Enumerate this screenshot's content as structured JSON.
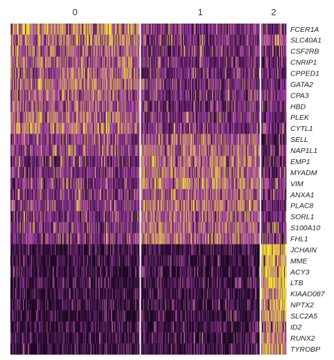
{
  "chart_data": {
    "type": "heatmap",
    "title": "",
    "xlabel": "",
    "ylabel": "",
    "clusters": [
      {
        "label": "0",
        "cells": 185
      },
      {
        "label": "1",
        "cells": 170
      },
      {
        "label": "2",
        "cells": 36
      }
    ],
    "genes": [
      "FCER1A",
      "SLC40A1",
      "CSF2RB",
      "CNRIP1",
      "CPPED1",
      "GATA2",
      "CPA3",
      "HBD",
      "PLEK",
      "CYTL1",
      "SELL",
      "NAP1L1",
      "EMP1",
      "MYADM",
      "VIM",
      "ANXA1",
      "PLAC8",
      "SORL1",
      "S100A10",
      "FHL1",
      "JCHAIN",
      "MME",
      "ACY3",
      "LTB",
      "KIAAO087",
      "NPTX2",
      "SLC2A5",
      "ID2",
      "RUNX2",
      "TYROBP"
    ],
    "mean_expression_by_cluster": {
      "columns": [
        "0",
        "1",
        "2"
      ],
      "rows": [
        [
          0.7,
          0.35,
          0.3
        ],
        [
          0.65,
          0.35,
          0.5
        ],
        [
          0.6,
          0.32,
          0.3
        ],
        [
          0.6,
          0.3,
          0.25
        ],
        [
          0.6,
          0.32,
          0.3
        ],
        [
          0.65,
          0.35,
          0.3
        ],
        [
          0.6,
          0.32,
          0.28
        ],
        [
          0.55,
          0.3,
          0.3
        ],
        [
          0.6,
          0.35,
          0.25
        ],
        [
          0.65,
          0.35,
          0.25
        ],
        [
          0.4,
          0.6,
          0.2
        ],
        [
          0.45,
          0.6,
          0.3
        ],
        [
          0.3,
          0.65,
          0.25
        ],
        [
          0.35,
          0.65,
          0.3
        ],
        [
          0.35,
          0.65,
          0.45
        ],
        [
          0.35,
          0.6,
          0.35
        ],
        [
          0.4,
          0.65,
          0.3
        ],
        [
          0.35,
          0.6,
          0.3
        ],
        [
          0.35,
          0.6,
          0.35
        ],
        [
          0.35,
          0.6,
          0.25
        ],
        [
          0.08,
          0.1,
          0.85
        ],
        [
          0.1,
          0.12,
          0.85
        ],
        [
          0.08,
          0.1,
          0.8
        ],
        [
          0.1,
          0.12,
          0.8
        ],
        [
          0.08,
          0.1,
          0.75
        ],
        [
          0.1,
          0.1,
          0.75
        ],
        [
          0.08,
          0.1,
          0.75
        ],
        [
          0.1,
          0.12,
          0.7
        ],
        [
          0.08,
          0.1,
          0.7
        ],
        [
          0.1,
          0.12,
          0.75
        ]
      ]
    },
    "color_scale": {
      "low": "#1a0820",
      "mid": "#a23ca8",
      "high": "#f4f41e"
    },
    "legend": "none",
    "grid": false
  }
}
